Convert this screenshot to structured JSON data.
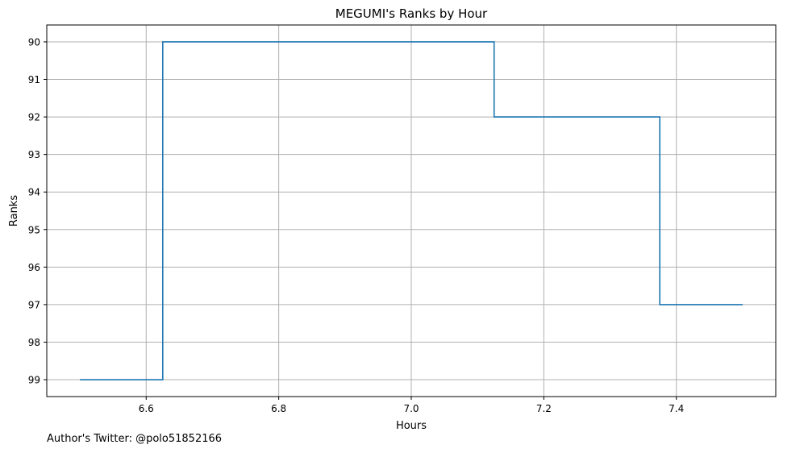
{
  "chart_data": {
    "type": "line",
    "drawstyle": "steps-mid",
    "title": "MEGUMI's Ranks by Hour",
    "xlabel": "Hours",
    "ylabel": "Ranks",
    "x": [
      6.5,
      6.75,
      7.0,
      7.25,
      7.5
    ],
    "series": [
      {
        "values": [
          99,
          90,
          90,
          92,
          97
        ],
        "color": "#1f77b4"
      }
    ],
    "xlim": [
      6.45,
      7.55
    ],
    "ylim": [
      99.45,
      89.55
    ],
    "y_inverted": true,
    "xticks": [
      6.6,
      6.8,
      7.0,
      7.2,
      7.4
    ],
    "xtick_labels": [
      "6.6",
      "6.8",
      "7.0",
      "7.2",
      "7.4"
    ],
    "yticks": [
      90,
      91,
      92,
      93,
      94,
      95,
      96,
      97,
      98,
      99
    ],
    "ytick_labels": [
      "90",
      "91",
      "92",
      "93",
      "94",
      "95",
      "96",
      "97",
      "98",
      "99"
    ],
    "grid": true,
    "legend": "none"
  },
  "footer": {
    "author_note": "Author's Twitter: @polo51852166"
  }
}
